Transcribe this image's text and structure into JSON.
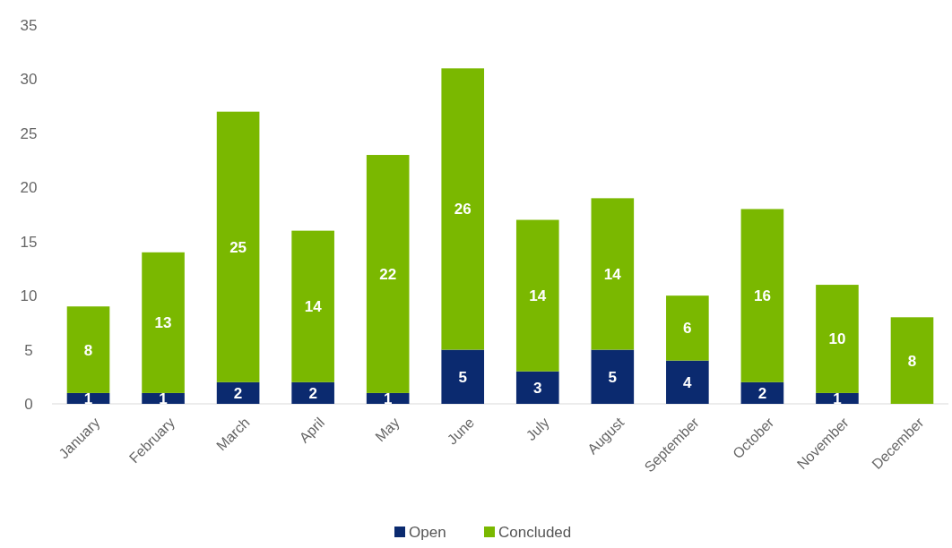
{
  "chart_data": {
    "type": "bar",
    "stacked": true,
    "categories": [
      "January",
      "February",
      "March",
      "April",
      "May",
      "June",
      "July",
      "August",
      "September",
      "October",
      "November",
      "December"
    ],
    "series": [
      {
        "name": "Open",
        "color": "#0b2a6f",
        "values": [
          1,
          1,
          2,
          2,
          1,
          5,
          3,
          5,
          4,
          2,
          1,
          null
        ]
      },
      {
        "name": "Concluded",
        "color": "#7ab800",
        "values": [
          8,
          13,
          25,
          14,
          22,
          26,
          14,
          14,
          6,
          16,
          10,
          8
        ]
      }
    ],
    "ylim": [
      0,
      35
    ],
    "yticks": [
      0,
      5,
      10,
      15,
      20,
      25,
      30,
      35
    ],
    "grid": false,
    "legend": "bottom",
    "data_labels": true
  }
}
